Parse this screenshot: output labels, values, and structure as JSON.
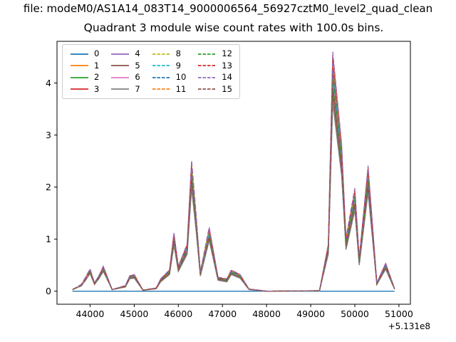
{
  "chart_data": {
    "type": "line",
    "suptitle": "file: modeM0/AS1A14_083T14_9000006564_56927cztM0_level2_quad_clean",
    "title": "Quadrant 3 module wise count rates with 100.0s bins.",
    "xlabel": "",
    "ylabel": "",
    "x_axis_offset": "+5.131e8",
    "xlim": [
      43250,
      51260
    ],
    "ylim": [
      -0.25,
      4.8
    ],
    "xticks": [
      44000,
      45000,
      46000,
      47000,
      48000,
      49000,
      50000,
      51000
    ],
    "yticks": [
      0,
      1,
      2,
      3,
      4
    ],
    "legend_position": "upper left",
    "legend_columns": 4,
    "grid": false,
    "x": [
      43600,
      43800,
      43900,
      44000,
      44100,
      44200,
      44300,
      44500,
      44800,
      44900,
      45000,
      45200,
      45500,
      45600,
      45800,
      45900,
      46000,
      46200,
      46300,
      46400,
      46500,
      46700,
      46900,
      47100,
      47200,
      47400,
      47600,
      48000,
      49200,
      49400,
      49500,
      49700,
      49800,
      50000,
      50100,
      50300,
      50500,
      50700,
      50900
    ],
    "series": [
      {
        "name": "0",
        "color": "#1f77b4",
        "linestyle": "solid",
        "values": [
          0,
          0,
          0,
          0,
          0,
          0,
          0,
          0,
          0,
          0,
          0,
          0,
          0,
          0,
          0,
          0,
          0,
          0,
          0,
          0,
          0,
          0,
          0,
          0,
          0,
          0,
          0,
          0,
          0,
          0,
          0,
          0,
          0,
          0,
          0,
          0,
          0,
          0,
          0
        ]
      },
      {
        "name": "1",
        "color": "#ff7f0e",
        "linestyle": "solid",
        "values": [
          0.03,
          0.11,
          0.23,
          0.37,
          0.14,
          0.26,
          0.42,
          0.03,
          0.09,
          0.26,
          0.28,
          0.02,
          0.06,
          0.2,
          0.35,
          0.98,
          0.42,
          0.79,
          2.19,
          1.3,
          0.33,
          1.07,
          0.23,
          0.2,
          0.35,
          0.28,
          0.04,
          0.0,
          0.01,
          0.79,
          4.0,
          2.46,
          0.88,
          1.72,
          0.56,
          2.09,
          0.14,
          0.47,
          0.05
        ]
      },
      {
        "name": "2",
        "color": "#2ca02c",
        "linestyle": "solid",
        "values": [
          0.03,
          0.12,
          0.25,
          0.4,
          0.15,
          0.28,
          0.45,
          0.03,
          0.1,
          0.28,
          0.3,
          0.02,
          0.06,
          0.22,
          0.38,
          1.05,
          0.45,
          0.85,
          2.35,
          1.4,
          0.35,
          1.15,
          0.25,
          0.22,
          0.38,
          0.3,
          0.04,
          0.0,
          0.01,
          0.85,
          4.3,
          2.65,
          0.95,
          1.85,
          0.6,
          2.25,
          0.15,
          0.5,
          0.05
        ]
      },
      {
        "name": "3",
        "color": "#d62728",
        "linestyle": "solid",
        "values": [
          0.03,
          0.12,
          0.26,
          0.41,
          0.15,
          0.29,
          0.46,
          0.03,
          0.1,
          0.29,
          0.31,
          0.02,
          0.06,
          0.22,
          0.39,
          1.07,
          0.46,
          0.87,
          2.4,
          1.43,
          0.36,
          1.17,
          0.26,
          0.22,
          0.39,
          0.31,
          0.04,
          0.0,
          0.01,
          0.87,
          4.39,
          2.7,
          0.97,
          1.89,
          0.61,
          2.3,
          0.15,
          0.51,
          0.05
        ]
      },
      {
        "name": "4",
        "color": "#9467bd",
        "linestyle": "solid",
        "values": [
          0.03,
          0.11,
          0.23,
          0.36,
          0.14,
          0.25,
          0.41,
          0.03,
          0.09,
          0.25,
          0.27,
          0.02,
          0.05,
          0.2,
          0.34,
          0.95,
          0.41,
          0.77,
          2.12,
          1.26,
          0.32,
          1.04,
          0.23,
          0.2,
          0.34,
          0.27,
          0.04,
          0.0,
          0.01,
          0.77,
          3.87,
          2.39,
          0.86,
          1.67,
          0.54,
          2.03,
          0.14,
          0.45,
          0.05
        ]
      },
      {
        "name": "5",
        "color": "#8c564b",
        "linestyle": "solid",
        "values": [
          0.03,
          0.11,
          0.22,
          0.35,
          0.13,
          0.25,
          0.4,
          0.03,
          0.09,
          0.25,
          0.26,
          0.02,
          0.05,
          0.19,
          0.33,
          0.92,
          0.4,
          0.75,
          2.07,
          1.23,
          0.31,
          1.01,
          0.22,
          0.19,
          0.33,
          0.26,
          0.04,
          0.0,
          0.01,
          0.75,
          3.78,
          2.33,
          0.84,
          1.63,
          0.53,
          1.98,
          0.13,
          0.44,
          0.04
        ]
      },
      {
        "name": "6",
        "color": "#e377c2",
        "linestyle": "solid",
        "values": [
          0.03,
          0.12,
          0.24,
          0.38,
          0.14,
          0.27,
          0.43,
          0.03,
          0.1,
          0.27,
          0.29,
          0.02,
          0.06,
          0.21,
          0.36,
          1.01,
          0.43,
          0.82,
          2.26,
          1.34,
          0.34,
          1.1,
          0.24,
          0.21,
          0.36,
          0.29,
          0.04,
          0.0,
          0.01,
          0.82,
          4.13,
          2.54,
          0.91,
          1.78,
          0.58,
          2.16,
          0.14,
          0.48,
          0.05
        ]
      },
      {
        "name": "7",
        "color": "#7f7f7f",
        "linestyle": "solid",
        "values": [
          0.03,
          0.1,
          0.21,
          0.34,
          0.13,
          0.24,
          0.38,
          0.03,
          0.08,
          0.24,
          0.25,
          0.02,
          0.05,
          0.18,
          0.32,
          0.88,
          0.38,
          0.71,
          1.97,
          1.18,
          0.29,
          0.97,
          0.21,
          0.18,
          0.32,
          0.25,
          0.03,
          0.0,
          0.01,
          0.71,
          3.61,
          2.23,
          0.8,
          1.55,
          0.5,
          1.89,
          0.13,
          0.42,
          0.04
        ]
      },
      {
        "name": "8",
        "color": "#bcbd22",
        "linestyle": "dashed",
        "values": [
          0.03,
          0.12,
          0.26,
          0.42,
          0.16,
          0.29,
          0.47,
          0.03,
          0.1,
          0.29,
          0.31,
          0.02,
          0.06,
          0.23,
          0.4,
          1.09,
          0.47,
          0.88,
          2.44,
          1.46,
          0.36,
          1.2,
          0.26,
          0.23,
          0.4,
          0.31,
          0.04,
          0.0,
          0.01,
          0.88,
          4.47,
          2.76,
          0.99,
          1.92,
          0.62,
          2.34,
          0.16,
          0.52,
          0.05
        ]
      },
      {
        "name": "9",
        "color": "#17becf",
        "linestyle": "dashed",
        "values": [
          0.03,
          0.12,
          0.25,
          0.39,
          0.15,
          0.27,
          0.44,
          0.03,
          0.1,
          0.27,
          0.29,
          0.02,
          0.06,
          0.22,
          0.37,
          1.03,
          0.44,
          0.83,
          2.3,
          1.37,
          0.34,
          1.13,
          0.25,
          0.22,
          0.37,
          0.29,
          0.04,
          0.0,
          0.01,
          0.83,
          4.21,
          2.6,
          0.93,
          1.81,
          0.59,
          2.21,
          0.15,
          0.49,
          0.05
        ]
      },
      {
        "name": "10",
        "color": "#1f77b4",
        "linestyle": "dashed",
        "values": [
          0.03,
          0.12,
          0.25,
          0.4,
          0.15,
          0.28,
          0.45,
          0.03,
          0.1,
          0.28,
          0.3,
          0.02,
          0.06,
          0.22,
          0.38,
          1.04,
          0.45,
          0.84,
          2.33,
          1.39,
          0.35,
          1.14,
          0.25,
          0.22,
          0.38,
          0.3,
          0.04,
          0.0,
          0.01,
          0.84,
          4.26,
          2.62,
          0.94,
          1.83,
          0.59,
          2.23,
          0.15,
          0.5,
          0.05
        ]
      },
      {
        "name": "11",
        "color": "#ff7f0e",
        "linestyle": "dashed",
        "values": [
          0.03,
          0.12,
          0.26,
          0.41,
          0.15,
          0.29,
          0.46,
          0.03,
          0.1,
          0.29,
          0.31,
          0.02,
          0.06,
          0.23,
          0.39,
          1.08,
          0.46,
          0.88,
          2.42,
          1.44,
          0.36,
          1.18,
          0.26,
          0.23,
          0.39,
          0.31,
          0.04,
          0.0,
          0.01,
          0.88,
          4.43,
          2.73,
          0.98,
          1.91,
          0.62,
          2.32,
          0.15,
          0.52,
          0.05
        ]
      },
      {
        "name": "12",
        "color": "#2ca02c",
        "linestyle": "dashed",
        "values": [
          0.03,
          0.11,
          0.24,
          0.38,
          0.14,
          0.27,
          0.43,
          0.03,
          0.1,
          0.27,
          0.29,
          0.02,
          0.06,
          0.21,
          0.36,
          1.0,
          0.43,
          0.81,
          2.23,
          1.33,
          0.33,
          1.09,
          0.24,
          0.21,
          0.36,
          0.29,
          0.04,
          0.0,
          0.01,
          0.81,
          4.09,
          2.52,
          0.9,
          1.76,
          0.57,
          2.14,
          0.14,
          0.48,
          0.05
        ]
      },
      {
        "name": "13",
        "color": "#d62728",
        "linestyle": "dashed",
        "values": [
          0.03,
          0.13,
          0.26,
          0.42,
          0.16,
          0.29,
          0.47,
          0.03,
          0.11,
          0.29,
          0.32,
          0.02,
          0.06,
          0.23,
          0.4,
          1.1,
          0.47,
          0.89,
          2.47,
          1.47,
          0.37,
          1.21,
          0.26,
          0.23,
          0.4,
          0.32,
          0.04,
          0.0,
          0.01,
          0.89,
          4.52,
          2.78,
          1.0,
          1.94,
          0.63,
          2.36,
          0.16,
          0.53,
          0.05
        ]
      },
      {
        "name": "14",
        "color": "#9467bd",
        "linestyle": "dashed",
        "values": [
          0.03,
          0.13,
          0.27,
          0.43,
          0.16,
          0.3,
          0.48,
          0.03,
          0.11,
          0.3,
          0.32,
          0.02,
          0.06,
          0.24,
          0.41,
          1.12,
          0.48,
          0.91,
          2.51,
          1.5,
          0.37,
          1.23,
          0.27,
          0.24,
          0.41,
          0.32,
          0.04,
          0.0,
          0.01,
          0.91,
          4.6,
          2.84,
          1.02,
          1.98,
          0.64,
          2.41,
          0.16,
          0.54,
          0.05
        ]
      },
      {
        "name": "15",
        "color": "#8c564b",
        "linestyle": "dashed",
        "values": [
          0.03,
          0.11,
          0.23,
          0.36,
          0.14,
          0.25,
          0.41,
          0.03,
          0.09,
          0.25,
          0.27,
          0.02,
          0.05,
          0.2,
          0.34,
          0.96,
          0.41,
          0.78,
          2.14,
          1.27,
          0.32,
          1.05,
          0.23,
          0.2,
          0.34,
          0.27,
          0.04,
          0.0,
          0.01,
          0.78,
          3.91,
          2.41,
          0.86,
          1.68,
          0.55,
          2.05,
          0.14,
          0.46,
          0.05
        ]
      }
    ]
  }
}
